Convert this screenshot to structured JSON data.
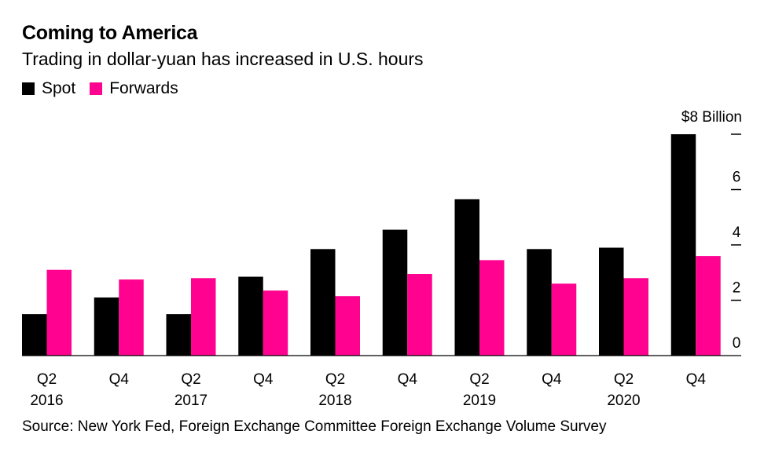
{
  "title": "Coming to America",
  "subtitle": "Trading in dollar-yuan has increased in U.S. hours",
  "source": "Source: New York Fed, Foreign Exchange Committee Foreign Exchange Volume Survey",
  "colors": {
    "spot": "#000000",
    "forwards": "#ff0390"
  },
  "chart_data": {
    "type": "bar",
    "title": "Coming to America",
    "subtitle": "Trading in dollar-yuan has increased in U.S. hours",
    "xlabel": "",
    "ylabel": "",
    "unit_label": "$8 Billion",
    "categories": [
      [
        "Q2",
        "2016"
      ],
      [
        "Q4",
        ""
      ],
      [
        "Q2",
        "2017"
      ],
      [
        "Q4",
        ""
      ],
      [
        "Q2",
        "2018"
      ],
      [
        "Q4",
        ""
      ],
      [
        "Q2",
        "2019"
      ],
      [
        "Q4",
        ""
      ],
      [
        "Q2",
        "2020"
      ],
      [
        "Q4",
        ""
      ]
    ],
    "series": [
      {
        "name": "Spot",
        "values": [
          1.5,
          2.1,
          1.5,
          2.85,
          3.85,
          4.55,
          5.65,
          3.85,
          3.9,
          8.0
        ]
      },
      {
        "name": "Forwards",
        "values": [
          3.1,
          2.75,
          2.8,
          2.35,
          2.15,
          2.95,
          3.45,
          2.6,
          2.8,
          3.6
        ]
      }
    ],
    "yticks": [
      {
        "value": 0,
        "label": "0"
      },
      {
        "value": 2,
        "label": "2"
      },
      {
        "value": 4,
        "label": "4"
      },
      {
        "value": 6,
        "label": "6"
      },
      {
        "value": 8,
        "label": ""
      }
    ],
    "ylim": [
      0,
      8
    ],
    "legend_position": "top-left",
    "grid": false
  }
}
